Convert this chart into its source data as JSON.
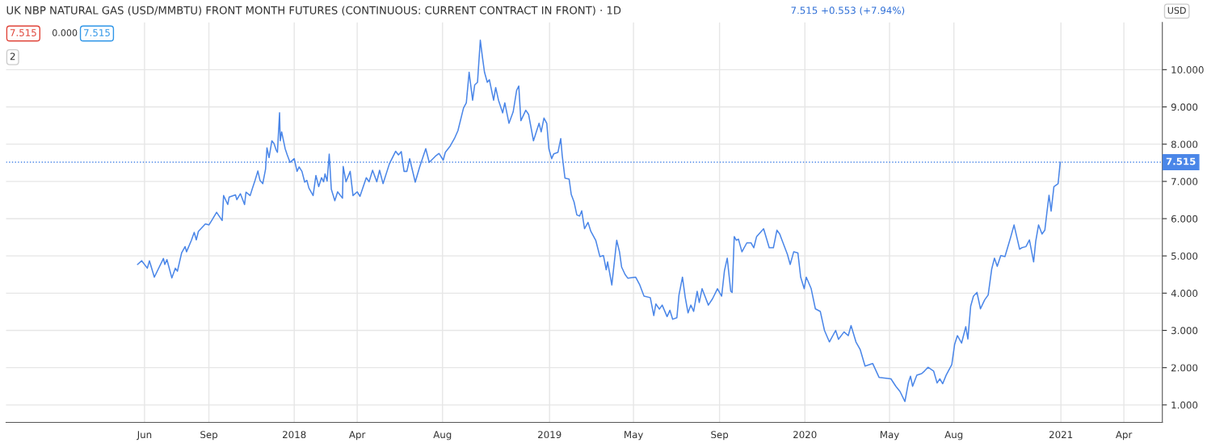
{
  "chart_data": {
    "type": "line",
    "title": "UK NBP NATURAL GAS (USD/MMBTU) FRONT MONTH FUTURES (CONTINUOUS: CURRENT CONTRACT IN FRONT) · 1D",
    "annotations": [
      "7.515 +0.553 (+7.94%)",
      "7.515",
      "0.000",
      "7.515",
      "2",
      "USD"
    ],
    "series": [
      {
        "color": "#4a86e8",
        "x": [
          "2017-05-22",
          "2017-05-28",
          "2017-06-05",
          "2017-06-08",
          "2017-06-15",
          "2017-06-28",
          "2017-06-30",
          "2017-07-03",
          "2017-07-10",
          "2017-07-15",
          "2017-07-18",
          "2017-07-24",
          "2017-07-29",
          "2017-07-31",
          "2017-08-07",
          "2017-08-11",
          "2017-08-14",
          "2017-08-17",
          "2017-08-27",
          "2017-09-01",
          "2017-09-06",
          "2017-09-12",
          "2017-09-20",
          "2017-09-22",
          "2017-09-28",
          "2017-09-30",
          "2017-10-09",
          "2017-10-11",
          "2017-10-16",
          "2017-10-22",
          "2017-10-24",
          "2017-10-30",
          "2017-11-02",
          "2017-11-06",
          "2017-11-10",
          "2017-11-13",
          "2017-11-17",
          "2017-11-21",
          "2017-11-23",
          "2017-11-26",
          "2017-11-30",
          "2017-12-03",
          "2017-12-06",
          "2017-12-08",
          "2017-12-11",
          "2017-12-12",
          "2017-12-14",
          "2017-12-19",
          "2017-12-22",
          "2017-12-26",
          "2018-01-01",
          "2018-01-05",
          "2018-01-08",
          "2018-01-12",
          "2018-01-16",
          "2018-01-19",
          "2018-01-22",
          "2018-01-28",
          "2018-02-01",
          "2018-02-05",
          "2018-02-09",
          "2018-02-12",
          "2018-02-14",
          "2018-02-17",
          "2018-02-20",
          "2018-02-23",
          "2018-02-28",
          "2018-03-04",
          "2018-03-11",
          "2018-03-12",
          "2018-03-16",
          "2018-03-22",
          "2018-03-26",
          "2018-04-01",
          "2018-04-05",
          "2018-04-14",
          "2018-04-18",
          "2018-04-23",
          "2018-04-29",
          "2018-05-03",
          "2018-05-08",
          "2018-05-17",
          "2018-05-26",
          "2018-05-30",
          "2018-06-03",
          "2018-06-07",
          "2018-06-11",
          "2018-06-15",
          "2018-06-23",
          "2018-06-29",
          "2018-07-08",
          "2018-07-13",
          "2018-07-22",
          "2018-07-27",
          "2018-08-02",
          "2018-08-05",
          "2018-08-12",
          "2018-08-18",
          "2018-08-23",
          "2018-08-31",
          "2018-09-04",
          "2018-09-08",
          "2018-09-13",
          "2018-09-16",
          "2018-09-20",
          "2018-09-24",
          "2018-09-27",
          "2018-09-30",
          "2018-10-04",
          "2018-10-07",
          "2018-10-13",
          "2018-10-16",
          "2018-10-20",
          "2018-10-26",
          "2018-10-29",
          "2018-11-04",
          "2018-11-10",
          "2018-11-15",
          "2018-11-18",
          "2018-11-21",
          "2018-11-28",
          "2018-12-02",
          "2018-12-09",
          "2018-12-17",
          "2018-12-20",
          "2018-12-24",
          "2018-12-28",
          "2018-12-31",
          "2019-01-04",
          "2019-01-07",
          "2019-01-13",
          "2019-01-17",
          "2019-01-19",
          "2019-01-23",
          "2019-01-29",
          "2019-02-01",
          "2019-02-05",
          "2019-02-09",
          "2019-02-13",
          "2019-02-16",
          "2019-02-20",
          "2019-02-25",
          "2019-03-01",
          "2019-03-08",
          "2019-03-14",
          "2019-03-19",
          "2019-03-23",
          "2019-03-25",
          "2019-03-31",
          "2019-04-07",
          "2019-04-11",
          "2019-04-14",
          "2019-04-19",
          "2019-04-23",
          "2019-05-04",
          "2019-05-10",
          "2019-05-16",
          "2019-05-25",
          "2019-05-30",
          "2019-06-02",
          "2019-06-07",
          "2019-06-11",
          "2019-06-18",
          "2019-06-22",
          "2019-06-26",
          "2019-07-02",
          "2019-07-05",
          "2019-07-10",
          "2019-07-14",
          "2019-07-18",
          "2019-07-22",
          "2019-07-26",
          "2019-07-31",
          "2019-08-03",
          "2019-08-07",
          "2019-08-16",
          "2019-08-22",
          "2019-08-29",
          "2019-09-04",
          "2019-09-08",
          "2019-09-12",
          "2019-09-17",
          "2019-09-19",
          "2019-09-22",
          "2019-09-25",
          "2019-09-28",
          "2019-10-03",
          "2019-10-10",
          "2019-10-16",
          "2019-10-20",
          "2019-10-24",
          "2019-11-03",
          "2019-11-11",
          "2019-11-17",
          "2019-11-22",
          "2019-11-26",
          "2019-11-30",
          "2019-12-07",
          "2019-12-11",
          "2019-12-16",
          "2019-12-22",
          "2019-12-26",
          "2019-12-31",
          "2020-01-03",
          "2020-01-10",
          "2020-01-16",
          "2020-01-23",
          "2020-01-29",
          "2020-02-05",
          "2020-02-14",
          "2020-02-18",
          "2020-02-26",
          "2020-03-03",
          "2020-03-07",
          "2020-03-14",
          "2020-03-20",
          "2020-03-27",
          "2020-04-07",
          "2020-04-16",
          "2020-05-03",
          "2020-05-10",
          "2020-05-16",
          "2020-05-23",
          "2020-05-28",
          "2020-05-31",
          "2020-06-03",
          "2020-06-09",
          "2020-06-16",
          "2020-06-20",
          "2020-06-25",
          "2020-07-03",
          "2020-07-08",
          "2020-07-12",
          "2020-07-16",
          "2020-07-21",
          "2020-07-29",
          "2020-08-02",
          "2020-08-06",
          "2020-08-12",
          "2020-08-18",
          "2020-08-21",
          "2020-08-25",
          "2020-08-29",
          "2020-09-03",
          "2020-09-08",
          "2020-09-14",
          "2020-09-19",
          "2020-09-24",
          "2020-09-28",
          "2020-10-02",
          "2020-10-07",
          "2020-10-13",
          "2020-10-21",
          "2020-10-26",
          "2020-11-03",
          "2020-11-06",
          "2020-11-12",
          "2020-11-17",
          "2020-11-23",
          "2020-11-26",
          "2020-11-30",
          "2020-12-05",
          "2020-12-09",
          "2020-12-12",
          "2020-12-15",
          "2020-12-18",
          "2020-12-22",
          "2020-12-28",
          "2020-12-31"
        ],
        "values": [
          4.77,
          4.87,
          4.67,
          4.87,
          4.43,
          4.93,
          4.77,
          4.9,
          4.41,
          4.67,
          4.59,
          5.08,
          5.25,
          5.11,
          5.42,
          5.63,
          5.43,
          5.66,
          5.86,
          5.83,
          5.98,
          6.17,
          5.95,
          6.62,
          6.38,
          6.58,
          6.64,
          6.51,
          6.67,
          6.38,
          6.71,
          6.62,
          6.8,
          7.03,
          7.28,
          7.03,
          6.94,
          7.33,
          7.9,
          7.64,
          8.09,
          8.02,
          7.85,
          7.78,
          8.84,
          8.09,
          8.33,
          7.88,
          7.71,
          7.51,
          7.61,
          7.27,
          7.39,
          7.27,
          6.98,
          7.03,
          6.82,
          6.62,
          7.16,
          6.86,
          7.1,
          6.99,
          7.2,
          7.01,
          7.73,
          6.79,
          6.48,
          6.72,
          6.55,
          7.4,
          6.99,
          7.27,
          6.62,
          6.72,
          6.6,
          7.1,
          6.99,
          7.3,
          6.99,
          7.3,
          6.94,
          7.47,
          7.81,
          7.71,
          7.8,
          7.27,
          7.27,
          7.61,
          6.98,
          7.37,
          7.88,
          7.51,
          7.68,
          7.75,
          7.57,
          7.78,
          7.95,
          8.15,
          8.36,
          8.97,
          9.11,
          9.93,
          9.18,
          9.59,
          9.66,
          10.79,
          10.34,
          9.93,
          9.66,
          9.73,
          9.18,
          9.52,
          9.18,
          8.84,
          9.11,
          8.56,
          8.87,
          9.45,
          9.56,
          8.63,
          8.91,
          8.8,
          8.09,
          8.56,
          8.33,
          8.7,
          8.56,
          7.88,
          7.61,
          7.74,
          7.78,
          8.15,
          7.71,
          7.09,
          7.06,
          6.65,
          6.45,
          6.1,
          6.07,
          6.21,
          5.73,
          5.9,
          5.66,
          5.42,
          4.98,
          5.01,
          4.63,
          4.84,
          4.22,
          5.42,
          5.11,
          4.7,
          4.5,
          4.4,
          4.43,
          4.22,
          3.92,
          3.88,
          3.4,
          3.71,
          3.57,
          3.68,
          3.37,
          3.54,
          3.3,
          3.34,
          3.95,
          4.43,
          3.88,
          3.47,
          3.68,
          3.51,
          4.05,
          3.75,
          4.12,
          3.68,
          3.85,
          4.12,
          3.92,
          4.6,
          4.94,
          4.05,
          4.02,
          5.52,
          5.42,
          5.45,
          5.11,
          5.35,
          5.35,
          5.22,
          5.52,
          5.73,
          5.22,
          5.22,
          5.69,
          5.59,
          5.39,
          5.04,
          4.77,
          5.11,
          5.08,
          4.43,
          4.12,
          4.43,
          4.12,
          3.58,
          3.51,
          3.0,
          2.69,
          3.0,
          2.76,
          2.96,
          2.86,
          3.13,
          2.69,
          2.49,
          2.04,
          2.11,
          1.74,
          1.7,
          1.5,
          1.36,
          1.09,
          1.6,
          1.77,
          1.5,
          1.8,
          1.84,
          1.91,
          2.01,
          1.91,
          1.59,
          1.7,
          1.57,
          1.8,
          2.08,
          2.62,
          2.86,
          2.66,
          3.1,
          2.77,
          3.65,
          3.92,
          4.02,
          3.58,
          3.82,
          3.95,
          4.64,
          4.94,
          4.72,
          5.01,
          4.98,
          5.49,
          5.83,
          5.18,
          5.22,
          5.25,
          5.43,
          4.84,
          5.39,
          5.83,
          5.59,
          5.69,
          6.17,
          6.63,
          6.2,
          6.86,
          6.94,
          7.515
        ]
      }
    ],
    "xlim": [
      "2016-11-15",
      "2021-05-26"
    ],
    "xticks": [
      {
        "value": "2017-06-01",
        "label": "Jun"
      },
      {
        "value": "2017-09-01",
        "label": "Sep"
      },
      {
        "value": "2018-01-01",
        "label": "2018"
      },
      {
        "value": "2018-04-01",
        "label": "Apr"
      },
      {
        "value": "2018-08-01",
        "label": "Aug"
      },
      {
        "value": "2019-01-01",
        "label": "2019"
      },
      {
        "value": "2019-05-01",
        "label": "May"
      },
      {
        "value": "2019-09-01",
        "label": "Sep"
      },
      {
        "value": "2020-01-01",
        "label": "2020"
      },
      {
        "value": "2020-05-01",
        "label": "May"
      },
      {
        "value": "2020-08-01",
        "label": "Aug"
      },
      {
        "value": "2021-01-01",
        "label": "2021"
      },
      {
        "value": "2021-04-01",
        "label": "Apr"
      }
    ],
    "ylim": [
      0.53,
      11.27
    ],
    "yticks": [
      {
        "value": 1,
        "label": "1.000"
      },
      {
        "value": 2,
        "label": "2.000"
      },
      {
        "value": 3,
        "label": "3.000"
      },
      {
        "value": 4,
        "label": "4.000"
      },
      {
        "value": 5,
        "label": "5.000"
      },
      {
        "value": 6,
        "label": "6.000"
      },
      {
        "value": 7,
        "label": "7.000"
      },
      {
        "value": 8,
        "label": "8.000"
      },
      {
        "value": 9,
        "label": "9.000"
      },
      {
        "value": 10,
        "label": "10.000"
      }
    ],
    "ref_lines": [
      {
        "axis": "y",
        "value": 7.515,
        "label": "7.515",
        "color": "#4a86e8",
        "line_style": "dotted"
      }
    ],
    "grid": true,
    "marker": "none",
    "line_style": "solid"
  }
}
